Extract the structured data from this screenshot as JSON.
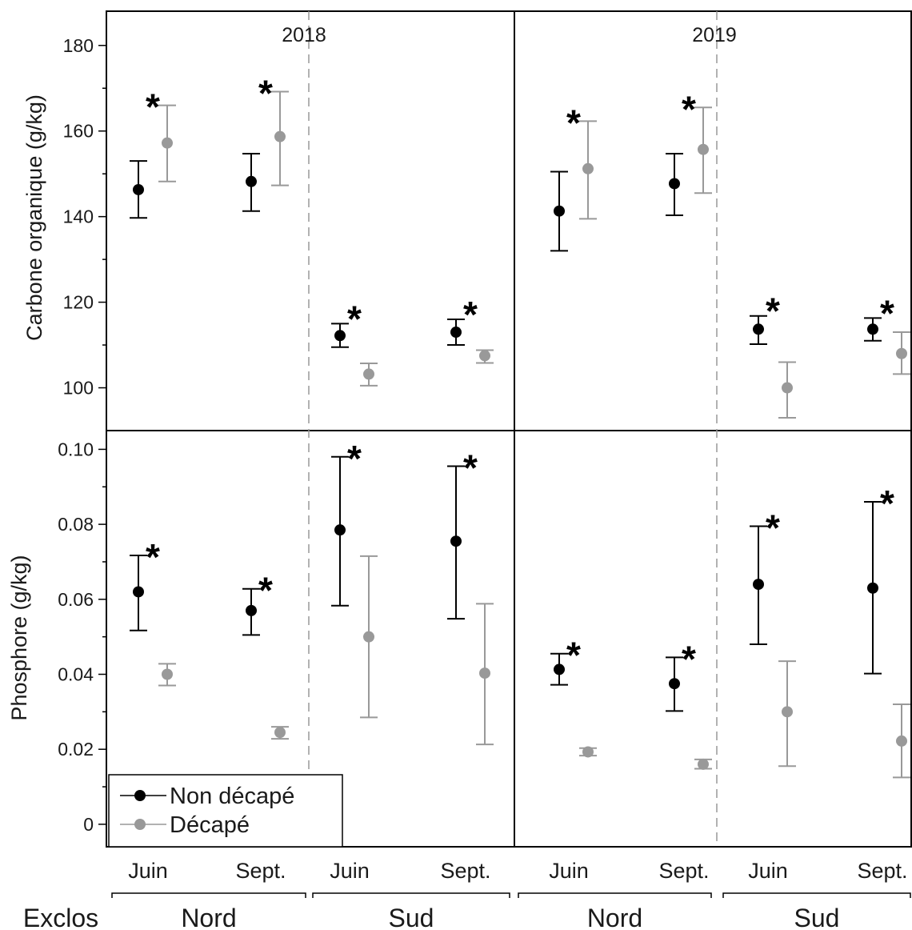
{
  "chart_data": {
    "type": "scatter",
    "years": [
      "2018",
      "2019"
    ],
    "groups": [
      "Nord",
      "Sud",
      "Nord",
      "Sud"
    ],
    "categories": [
      "Juin",
      "Sept.",
      "Juin",
      "Sept.",
      "Juin",
      "Sept.",
      "Juin",
      "Sept."
    ],
    "x_axis_prefix": "Exclos",
    "series": [
      {
        "name": "Non décapé",
        "color": "#000000"
      },
      {
        "name": "Décapé",
        "color": "#999999"
      }
    ],
    "panels": [
      {
        "id": "carbone",
        "ylabel": "Carbone organique (g/kg)",
        "ylim": [
          90,
          188
        ],
        "yticks": [
          100,
          120,
          140,
          160,
          180
        ],
        "ytick_labels": [
          "100",
          "120",
          "140",
          "160",
          "180"
        ],
        "minor_ticks": [
          110,
          130,
          150,
          170
        ],
        "non_decape": [
          {
            "mean": 146.3,
            "low": 139.7,
            "high": 153.0
          },
          {
            "mean": 148.2,
            "low": 141.3,
            "high": 154.7
          },
          {
            "mean": 112.2,
            "low": 109.5,
            "high": 115.0
          },
          {
            "mean": 113.0,
            "low": 110.0,
            "high": 116.0
          },
          {
            "mean": 141.3,
            "low": 132.0,
            "high": 150.5
          },
          {
            "mean": 147.7,
            "low": 140.3,
            "high": 154.7
          },
          {
            "mean": 113.7,
            "low": 110.2,
            "high": 116.8
          },
          {
            "mean": 113.7,
            "low": 111.0,
            "high": 116.3
          }
        ],
        "decape": [
          {
            "mean": 157.2,
            "low": 148.2,
            "high": 166.0
          },
          {
            "mean": 158.7,
            "low": 147.3,
            "high": 169.2
          },
          {
            "mean": 103.2,
            "low": 100.5,
            "high": 105.7
          },
          {
            "mean": 107.5,
            "low": 105.8,
            "high": 108.8
          },
          {
            "mean": 151.2,
            "low": 139.5,
            "high": 162.3
          },
          {
            "mean": 155.7,
            "low": 145.5,
            "high": 165.5
          },
          {
            "mean": 100.0,
            "low": 93.0,
            "high": 106.0
          },
          {
            "mean": 108.0,
            "low": 103.2,
            "high": 113.0
          }
        ],
        "stars": [
          true,
          true,
          true,
          true,
          true,
          true,
          true,
          true
        ]
      },
      {
        "id": "phosphore",
        "ylabel": "Phosphore (g/kg)",
        "ylim": [
          -0.006,
          0.105
        ],
        "yticks": [
          0,
          0.02,
          0.04,
          0.06,
          0.08,
          0.1
        ],
        "ytick_labels": [
          "0",
          "0.02",
          "0.04",
          "0.06",
          "0.08",
          "0.10"
        ],
        "minor_ticks": [
          0.01,
          0.03,
          0.05,
          0.07,
          0.09
        ],
        "non_decape": [
          {
            "mean": 0.062,
            "low": 0.0517,
            "high": 0.0717
          },
          {
            "mean": 0.057,
            "low": 0.0505,
            "high": 0.0628
          },
          {
            "mean": 0.0785,
            "low": 0.0583,
            "high": 0.098
          },
          {
            "mean": 0.0755,
            "low": 0.0548,
            "high": 0.0955
          },
          {
            "mean": 0.0413,
            "low": 0.0372,
            "high": 0.0455
          },
          {
            "mean": 0.0375,
            "low": 0.0302,
            "high": 0.0445
          },
          {
            "mean": 0.064,
            "low": 0.048,
            "high": 0.0795
          },
          {
            "mean": 0.063,
            "low": 0.0402,
            "high": 0.086
          }
        ],
        "decape": [
          {
            "mean": 0.04,
            "low": 0.037,
            "high": 0.0428
          },
          {
            "mean": 0.0245,
            "low": 0.0228,
            "high": 0.026
          },
          {
            "mean": 0.05,
            "low": 0.0285,
            "high": 0.0715
          },
          {
            "mean": 0.0403,
            "low": 0.0213,
            "high": 0.0588
          },
          {
            "mean": 0.0193,
            "low": 0.0183,
            "high": 0.0203
          },
          {
            "mean": 0.016,
            "low": 0.0148,
            "high": 0.0173
          },
          {
            "mean": 0.03,
            "low": 0.0155,
            "high": 0.0435
          },
          {
            "mean": 0.0222,
            "low": 0.0125,
            "high": 0.032
          }
        ],
        "stars": [
          true,
          true,
          true,
          true,
          true,
          true,
          true,
          true
        ]
      }
    ],
    "legend_location": "lower-left",
    "significance_marker": "*"
  }
}
